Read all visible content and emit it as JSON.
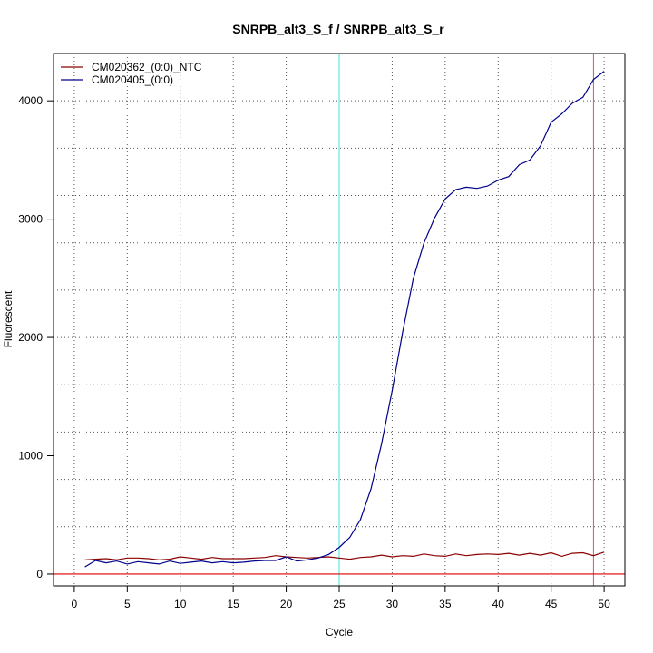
{
  "chart_data": {
    "type": "line",
    "title": "SNRPB_alt3_S_f / SNRPB_alt3_S_r",
    "xlabel": "Cycle",
    "ylabel": "Fluorescent",
    "xlim": [
      -1.96,
      51.96
    ],
    "ylim": [
      -100,
      4400
    ],
    "xticks": [
      0,
      5,
      10,
      15,
      20,
      25,
      30,
      35,
      40,
      45,
      50
    ],
    "yticks": [
      0,
      1000,
      2000,
      3000,
      4000
    ],
    "grid": "dotted",
    "grid_x": [
      0,
      5,
      10,
      15,
      20,
      25,
      30,
      35,
      40,
      45,
      50
    ],
    "grid_y": [
      0,
      400,
      800,
      1200,
      1600,
      2000,
      2400,
      2800,
      3200,
      3600,
      4000,
      4400
    ],
    "legend_position": "top-left",
    "vlines": [
      {
        "x": 25,
        "color": "#40e0e0"
      },
      {
        "x": 49,
        "color": "#cd5c5c"
      }
    ],
    "hlines": [
      {
        "y": 0,
        "color": "#dd0000"
      }
    ],
    "series": [
      {
        "name": "CM020362_(0:0)_NTC",
        "color": "#8b0000",
        "x": [
          1,
          2,
          3,
          4,
          5,
          6,
          7,
          8,
          9,
          10,
          11,
          12,
          13,
          14,
          15,
          16,
          17,
          18,
          19,
          20,
          21,
          22,
          23,
          24,
          25,
          26,
          27,
          28,
          29,
          30,
          31,
          32,
          33,
          34,
          35,
          36,
          37,
          38,
          39,
          40,
          41,
          42,
          43,
          44,
          45,
          46,
          47,
          48,
          49,
          50
        ],
        "values": [
          120,
          125,
          130,
          120,
          135,
          135,
          130,
          120,
          125,
          145,
          135,
          125,
          140,
          130,
          130,
          130,
          135,
          140,
          155,
          145,
          140,
          135,
          140,
          145,
          135,
          125,
          140,
          145,
          160,
          145,
          155,
          150,
          170,
          155,
          150,
          170,
          155,
          165,
          170,
          165,
          175,
          160,
          175,
          160,
          180,
          150,
          175,
          180,
          155,
          185
        ]
      },
      {
        "name": "CM020405_(0:0)",
        "color": "#00008b",
        "x": [
          1,
          2,
          3,
          4,
          5,
          6,
          7,
          8,
          9,
          10,
          11,
          12,
          13,
          14,
          15,
          16,
          17,
          18,
          19,
          20,
          21,
          22,
          23,
          24,
          25,
          26,
          27,
          28,
          29,
          30,
          31,
          32,
          33,
          34,
          35,
          36,
          37,
          38,
          39,
          40,
          41,
          42,
          43,
          44,
          45,
          46,
          47,
          48,
          49,
          50
        ],
        "values": [
          60,
          115,
          95,
          110,
          85,
          105,
          95,
          85,
          110,
          90,
          100,
          110,
          95,
          105,
          95,
          100,
          110,
          115,
          115,
          145,
          110,
          120,
          135,
          165,
          225,
          310,
          460,
          720,
          1100,
          1550,
          2050,
          2500,
          2800,
          3010,
          3170,
          3250,
          3270,
          3260,
          3280,
          3330,
          3360,
          3460,
          3500,
          3620,
          3820,
          3890,
          3980,
          4030,
          4180,
          4250
        ]
      }
    ]
  }
}
